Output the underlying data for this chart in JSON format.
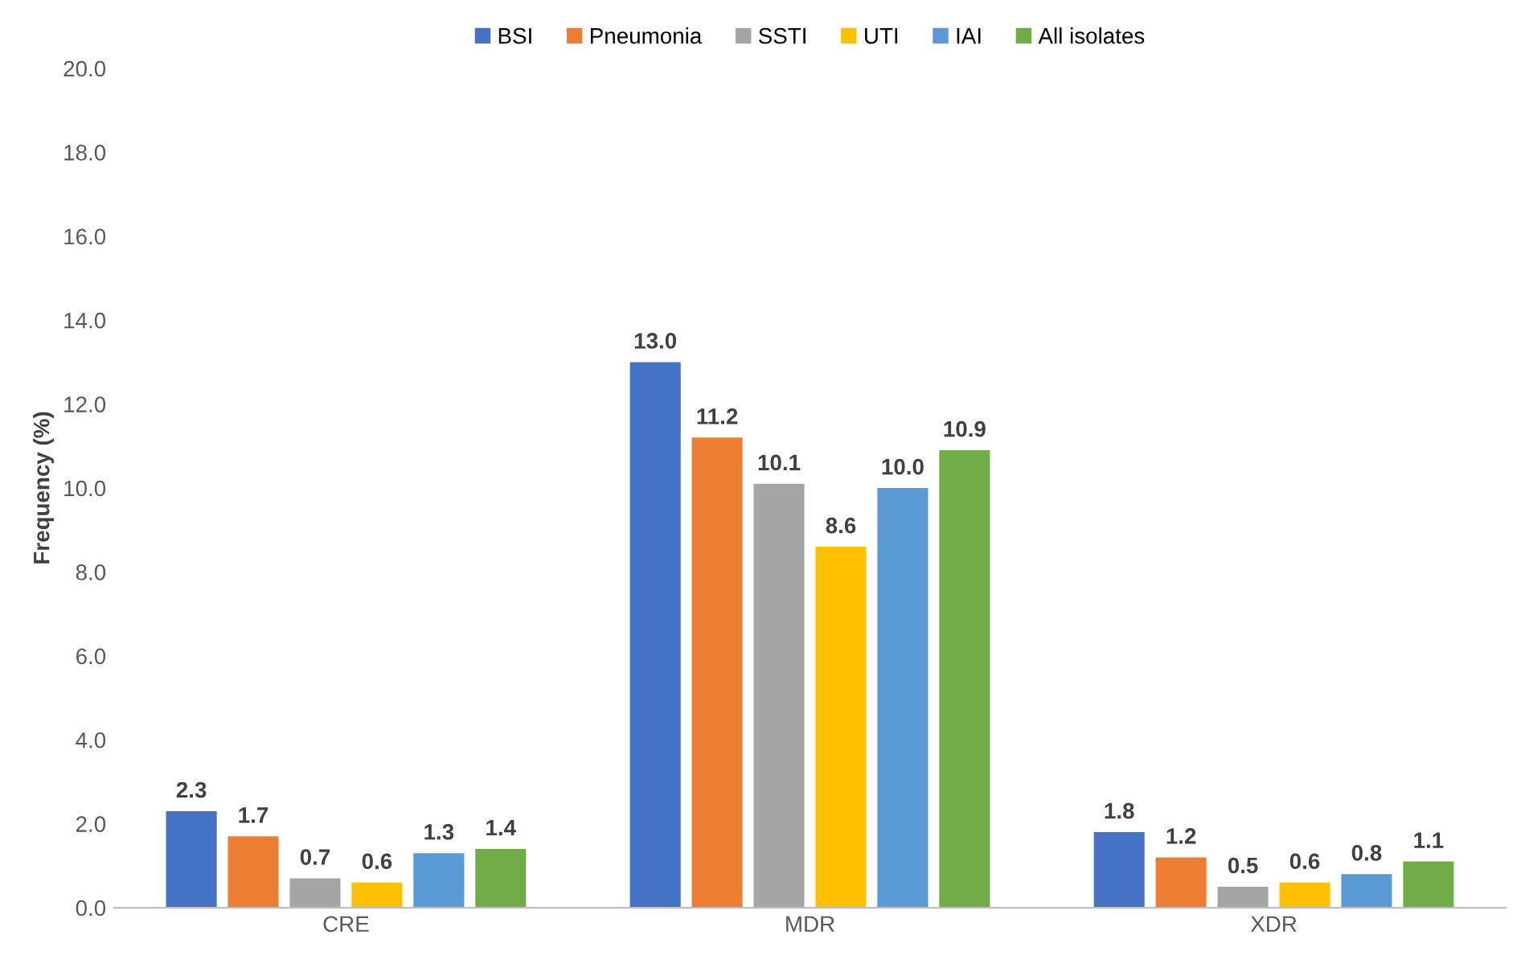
{
  "chart_data": {
    "type": "bar",
    "ylabel": "Frequency (%)",
    "categories": [
      "CRE",
      "MDR",
      "XDR"
    ],
    "series": [
      {
        "name": "BSI",
        "color": "#4472c4",
        "values": [
          2.3,
          13.0,
          1.8
        ],
        "value_labels": [
          "2.3",
          "13.0",
          "1.8"
        ]
      },
      {
        "name": "Pneumonia",
        "color": "#ed7d31",
        "values": [
          1.7,
          11.2,
          1.2
        ],
        "value_labels": [
          "1.7",
          "11.2",
          "1.2"
        ]
      },
      {
        "name": "SSTI",
        "color": "#a5a5a5",
        "values": [
          0.7,
          10.1,
          0.5
        ],
        "value_labels": [
          "0.7",
          "10.1",
          "0.5"
        ]
      },
      {
        "name": "UTI",
        "color": "#ffc000",
        "values": [
          0.6,
          8.6,
          0.6
        ],
        "value_labels": [
          "0.6",
          "8.6",
          "0.6"
        ]
      },
      {
        "name": "IAI",
        "color": "#5b9bd5",
        "values": [
          1.3,
          10.0,
          0.8
        ],
        "value_labels": [
          "1.3",
          "10.0",
          "0.8"
        ]
      },
      {
        "name": "All isolates",
        "color": "#70ad47",
        "values": [
          1.4,
          10.9,
          1.1
        ],
        "value_labels": [
          "1.4",
          "10.9",
          "1.1"
        ]
      }
    ],
    "ylim": [
      0,
      20
    ],
    "yticks": [
      {
        "value": 0,
        "label": "0.0"
      },
      {
        "value": 2,
        "label": "2.0"
      },
      {
        "value": 4,
        "label": "4.0"
      },
      {
        "value": 6,
        "label": "6.0"
      },
      {
        "value": 8,
        "label": "8.0"
      },
      {
        "value": 10,
        "label": "10.0"
      },
      {
        "value": 12,
        "label": "12.0"
      },
      {
        "value": 14,
        "label": "14.0"
      },
      {
        "value": 16,
        "label": "16.0"
      },
      {
        "value": 18,
        "label": "18.0"
      },
      {
        "value": 20,
        "label": "20.0"
      }
    ],
    "grid": false,
    "legend": "top"
  }
}
